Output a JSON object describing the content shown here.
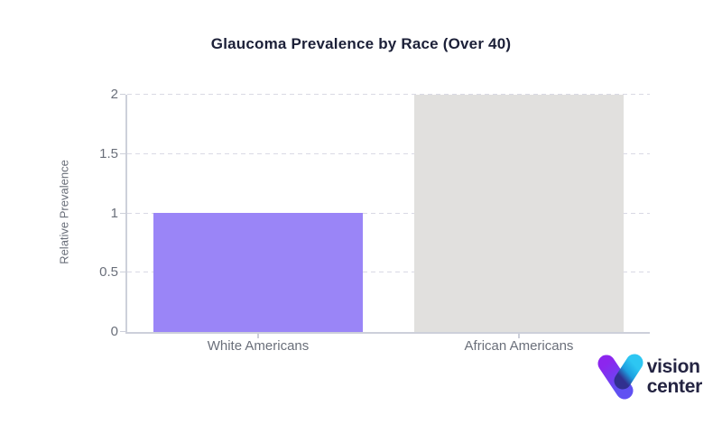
{
  "title": "Glaucoma Prevalence by Race (Over 40)",
  "chart_data": {
    "type": "bar",
    "title": "Glaucoma Prevalence by Race (Over 40)",
    "categories": [
      "White Americans",
      "African Americans"
    ],
    "values": [
      1,
      2
    ],
    "xlabel": "",
    "ylabel": "Relative Prevalence",
    "ylim": [
      0,
      2
    ],
    "yticks": [
      "0",
      "0.5",
      "1",
      "1.5",
      "2"
    ],
    "ytick_values": [
      0,
      0.5,
      1,
      1.5,
      2
    ],
    "grid": "horizontal-dashed",
    "legend": "none",
    "bar_colors": [
      "#9a85f7",
      "#e1e0de"
    ]
  },
  "colors": {
    "background": "#ffffff",
    "title_text": "#1c2038",
    "axis_line": "#cdd0da",
    "grid_line": "#d9d9e4",
    "tick_label": "#6a6f7a",
    "axis_title": "#6a6f7a",
    "bar_white_americans": "#9a85f7",
    "bar_african_americans": "#e1e0de",
    "logo_text": "#242442",
    "logo_purple_top": "#8c26ee",
    "logo_purple_bottom": "#6050f2",
    "logo_cyan_top": "#2dc6f2",
    "logo_blue_mid": "#1d9fe0",
    "logo_indigo_bottom": "#31308f"
  },
  "logo": {
    "line1": "vision",
    "line2": "center"
  }
}
